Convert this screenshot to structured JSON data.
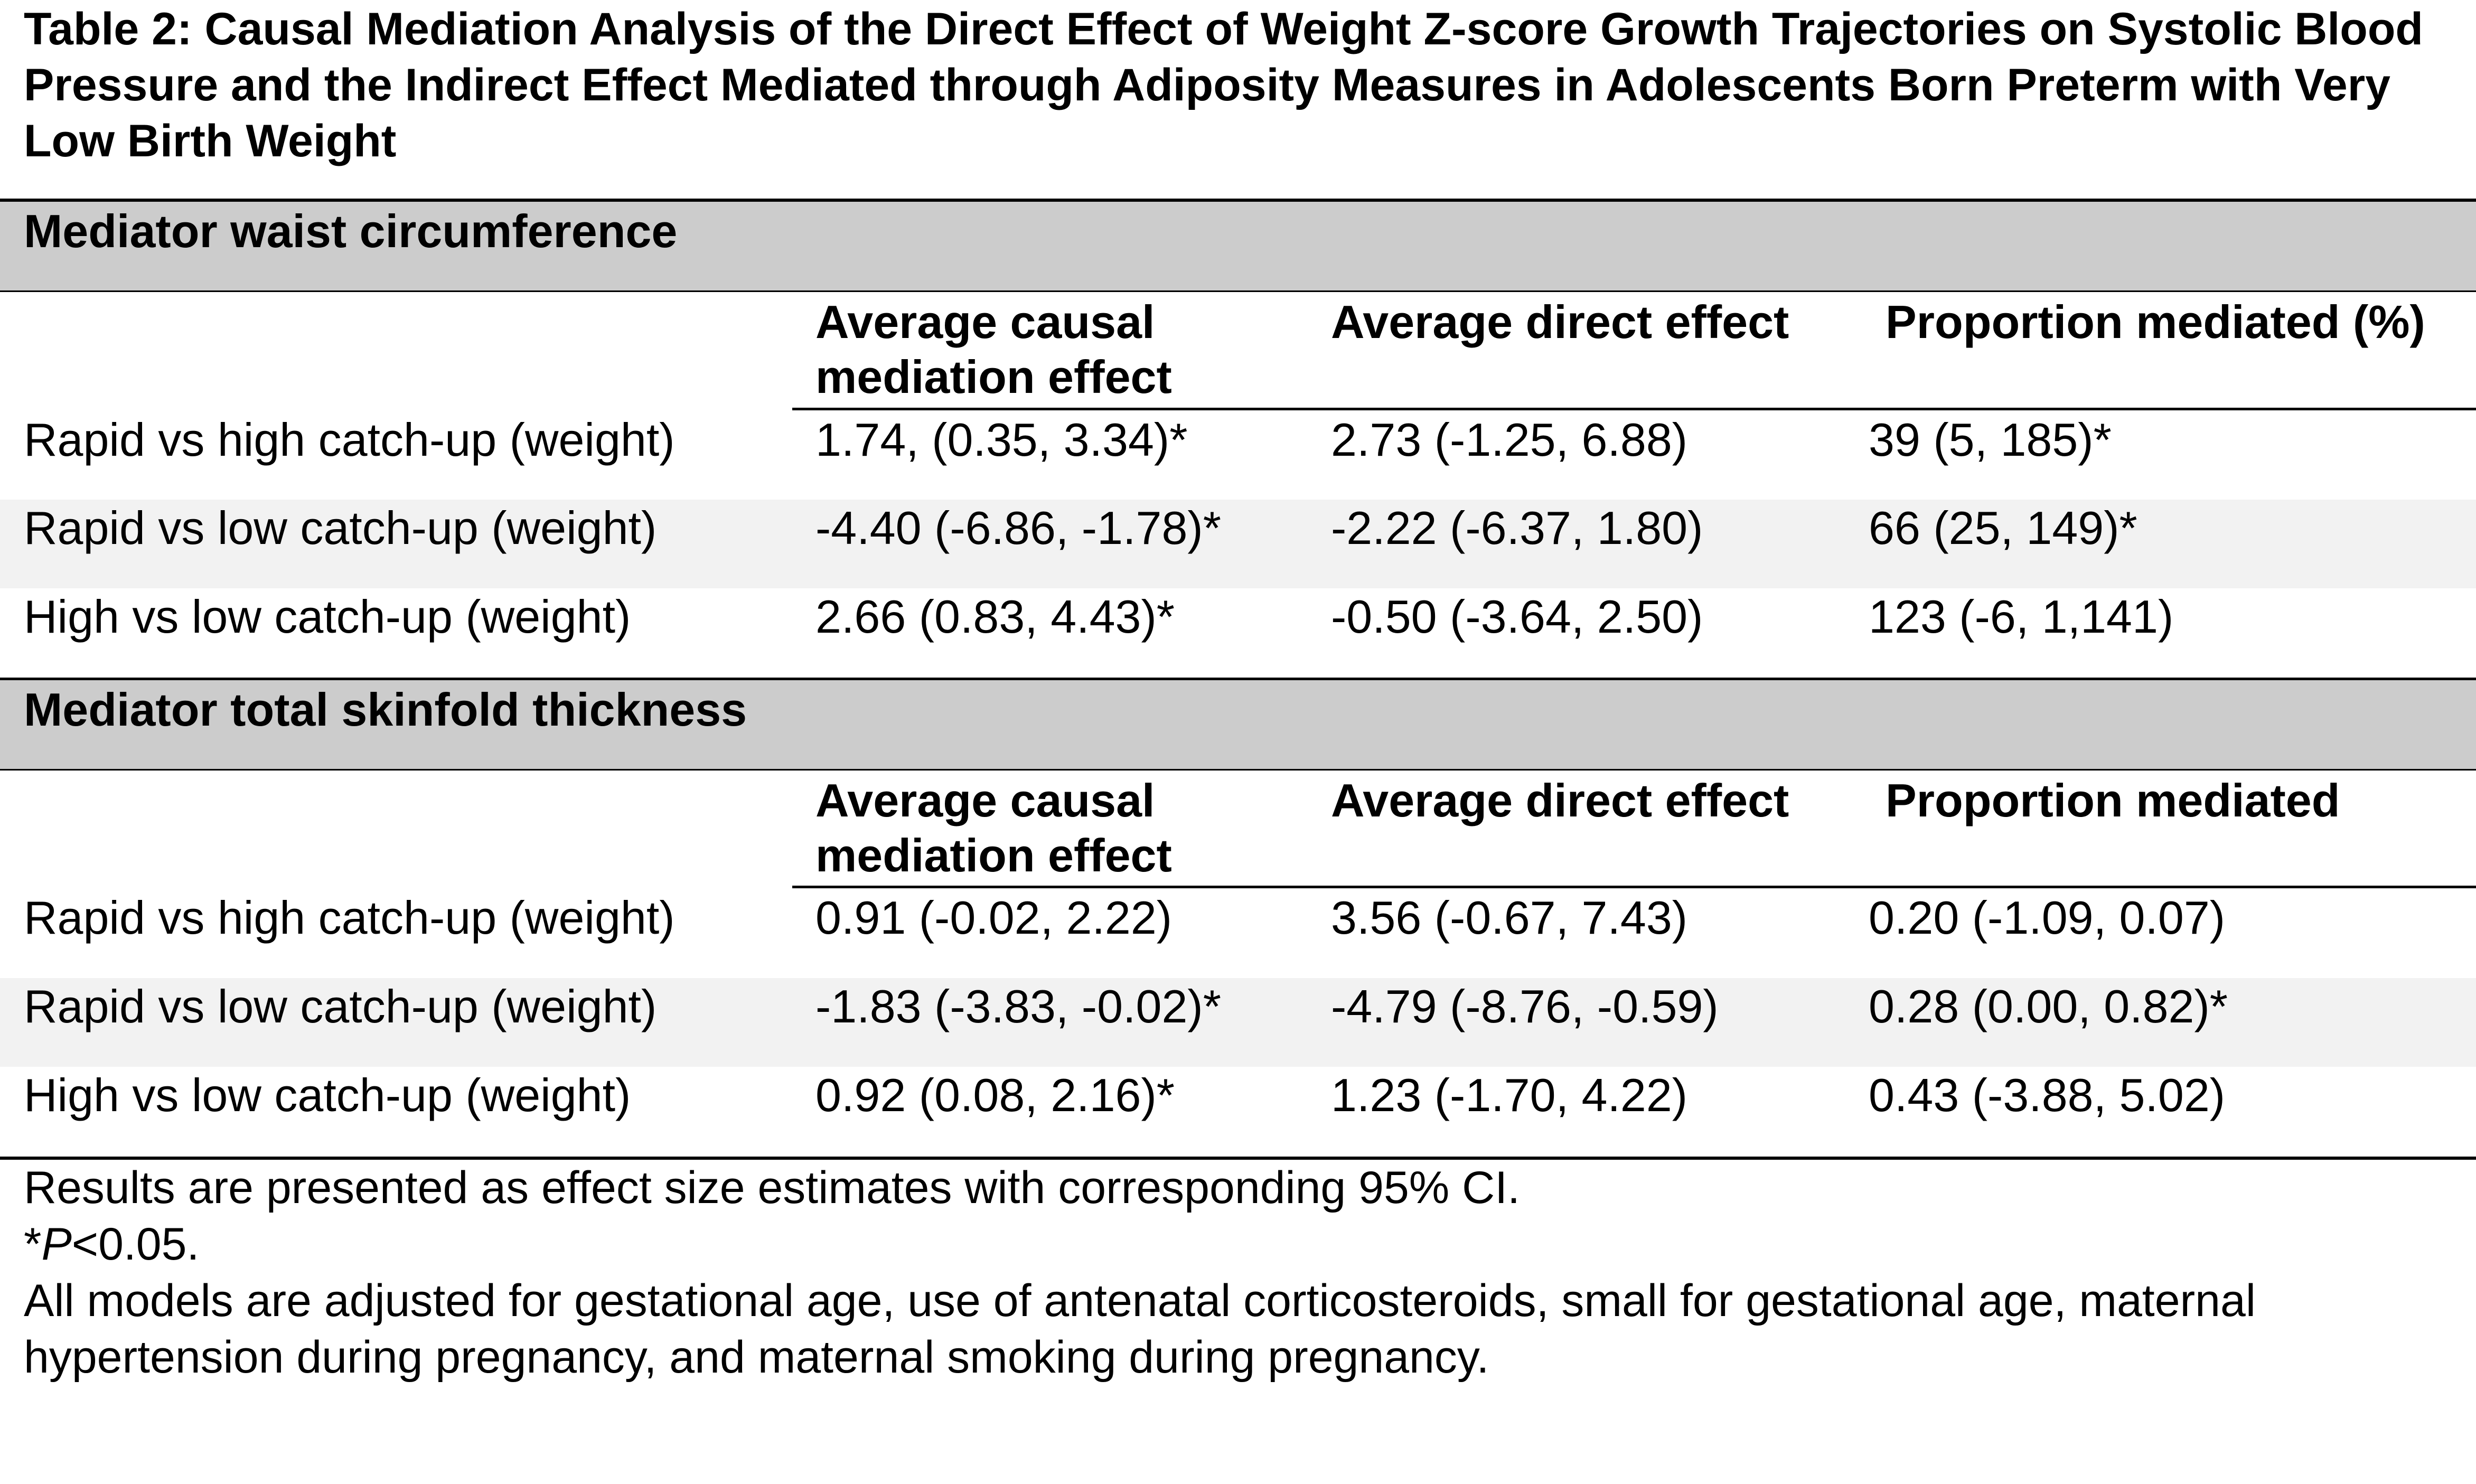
{
  "title": "Table 2: Causal Mediation Analysis of the Direct Effect of Weight Z-score Growth Trajectories on Systolic Blood Pressure and the Indirect Effect Mediated through Adiposity Measures in Adolescents Born Preterm with Very Low Birth Weight",
  "sections": [
    {
      "label": "Mediator waist circumference",
      "headers": [
        "Average causal mediation effect",
        "Average direct effect",
        "Proportion mediated (%)"
      ],
      "rows": [
        {
          "label": "Rapid vs high catch-up (weight)",
          "acme": "1.74, (0.35, 3.34)*",
          "ade": "2.73 (-1.25, 6.88)",
          "prop": "39 (5, 185)*"
        },
        {
          "label": "Rapid vs low catch-up (weight)",
          "acme": "-4.40 (-6.86, -1.78)*",
          "ade": "-2.22 (-6.37, 1.80)",
          "prop": "66 (25, 149)*"
        },
        {
          "label": "High vs low catch-up (weight)",
          "acme": "2.66 (0.83, 4.43)*",
          "ade": "-0.50 (-3.64, 2.50)",
          "prop": "123 (-6, 1,141)"
        }
      ]
    },
    {
      "label": "Mediator total skinfold thickness",
      "headers": [
        "Average causal mediation effect",
        "Average direct effect",
        "Proportion mediated"
      ],
      "rows": [
        {
          "label": "Rapid vs high catch-up (weight)",
          "acme": "0.91 (-0.02, 2.22)",
          "ade": "3.56 (-0.67, 7.43)",
          "prop": "0.20 (-1.09, 0.07)"
        },
        {
          "label": "Rapid vs low catch-up (weight)",
          "acme": "-1.83 (-3.83, -0.02)*",
          "ade": "-4.79 (-8.76, -0.59)",
          "prop": "0.28 (0.00, 0.82)*"
        },
        {
          "label": "High vs low catch-up (weight)",
          "acme": "0.92 (0.08, 2.16)*",
          "ade": "1.23 (-1.70, 4.22)",
          "prop": "0.43 (-3.88, 5.02)"
        }
      ]
    }
  ],
  "notes": {
    "ci": "Results are presented as effect size estimates with corresponding 95% CI.",
    "sig_star": "*",
    "sig_p": "P",
    "sig_rest": "<0.05.",
    "adjusted": "All models are adjusted for gestational age, use of antenatal corticosteroids, small for gestational age, maternal hypertension during pregnancy, and maternal smoking during pregnancy."
  },
  "colors": {
    "section_band": "#cccccc",
    "row_stripe": "#f2f2f2",
    "rule": "#000000"
  }
}
